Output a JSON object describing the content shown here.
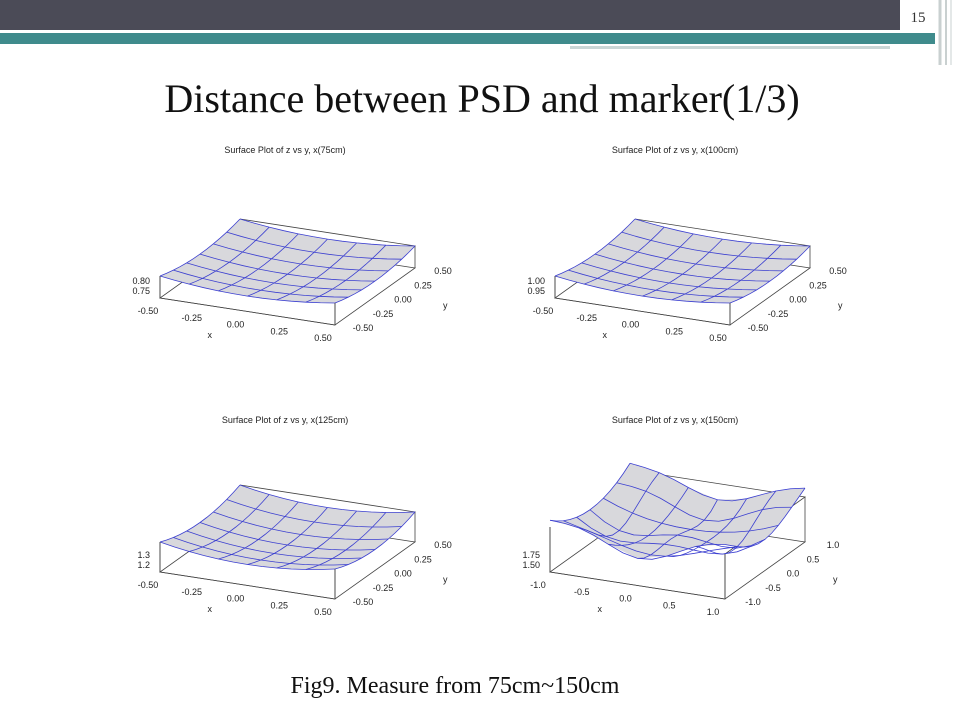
{
  "slide_number": "15",
  "title": "Distance between PSD and marker(1/3)",
  "plots": [
    {
      "title": "Surface Plot of z vs y, x(75cm)",
      "z_ticks": [
        "0.80",
        "0.75"
      ],
      "x_ticks": [
        "-0.50",
        "-0.25",
        "0.00",
        "0.25",
        "0.50"
      ],
      "x_label": "x",
      "y_ticks": [
        "0.50",
        "0.25",
        "0.00",
        "-0.25",
        "-0.50"
      ],
      "y_label": "y"
    },
    {
      "title": "Surface Plot of z vs y, x(100cm)",
      "z_ticks": [
        "1.00",
        "0.95"
      ],
      "x_ticks": [
        "-0.50",
        "-0.25",
        "0.00",
        "0.25",
        "0.50"
      ],
      "x_label": "x",
      "y_ticks": [
        "0.50",
        "0.25",
        "0.00",
        "-0.25",
        "-0.50"
      ],
      "y_label": "y"
    },
    {
      "title": "Surface Plot of z vs y, x(125cm)",
      "z_ticks": [
        "1.3",
        "1.2"
      ],
      "x_ticks": [
        "-0.50",
        "-0.25",
        "0.00",
        "0.25",
        "0.50"
      ],
      "x_label": "x",
      "y_ticks": [
        "0.50",
        "0.25",
        "0.00",
        "-0.25",
        "-0.50"
      ],
      "y_label": "y"
    },
    {
      "title": "Surface Plot of z vs y, x(150cm)",
      "z_ticks": [
        "1.75",
        "1.50"
      ],
      "x_ticks": [
        "-1.0",
        "-0.5",
        "0.0",
        "0.5",
        "1.0"
      ],
      "x_label": "x",
      "y_ticks": [
        "1.0",
        "0.5",
        "0.0",
        "-0.5",
        "-1.0"
      ],
      "y_label": "y"
    }
  ],
  "caption": "Fig9. Measure from 75cm~150cm"
}
